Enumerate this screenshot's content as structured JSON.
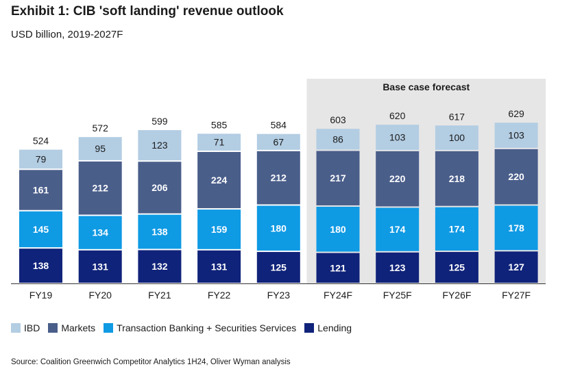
{
  "title": "Exhibit 1: CIB 'soft landing' revenue outlook",
  "subtitle": "USD billion, 2019-2027F",
  "forecast_label": "Base case forecast",
  "source": "Source: Coalition Greenwich Competitor Analytics 1H24, Oliver Wyman analysis",
  "colors": {
    "IBD": "#b3cde3",
    "Markets": "#4a5e8a",
    "Transaction Banking + Securities Services": "#0f9ae4",
    "Lending": "#10237a",
    "forecast_bg": "#e6e6e6"
  },
  "legend": [
    {
      "name": "IBD",
      "color": "#b3cde3"
    },
    {
      "name": "Markets",
      "color": "#4a5e8a"
    },
    {
      "name": "Transaction Banking + Securities Services",
      "color": "#0f9ae4"
    },
    {
      "name": "Lending",
      "color": "#10237a"
    }
  ],
  "chart_data": {
    "type": "bar",
    "stacked": true,
    "categories": [
      "FY19",
      "FY20",
      "FY21",
      "FY22",
      "FY23",
      "FY24F",
      "FY25F",
      "FY26F",
      "FY27F"
    ],
    "totals": [
      524,
      572,
      599,
      585,
      584,
      603,
      620,
      617,
      629
    ],
    "series": [
      {
        "name": "Lending",
        "values": [
          138,
          131,
          132,
          131,
          125,
          121,
          123,
          125,
          127
        ]
      },
      {
        "name": "Transaction Banking + Securities Services",
        "values": [
          145,
          134,
          138,
          159,
          180,
          180,
          174,
          174,
          178
        ]
      },
      {
        "name": "Markets",
        "values": [
          161,
          212,
          206,
          224,
          212,
          217,
          220,
          218,
          220
        ]
      },
      {
        "name": "IBD",
        "values": [
          79,
          95,
          123,
          71,
          67,
          86,
          103,
          100,
          103
        ]
      }
    ],
    "forecast_start_index": 5,
    "xlabel": "",
    "ylabel": ""
  }
}
